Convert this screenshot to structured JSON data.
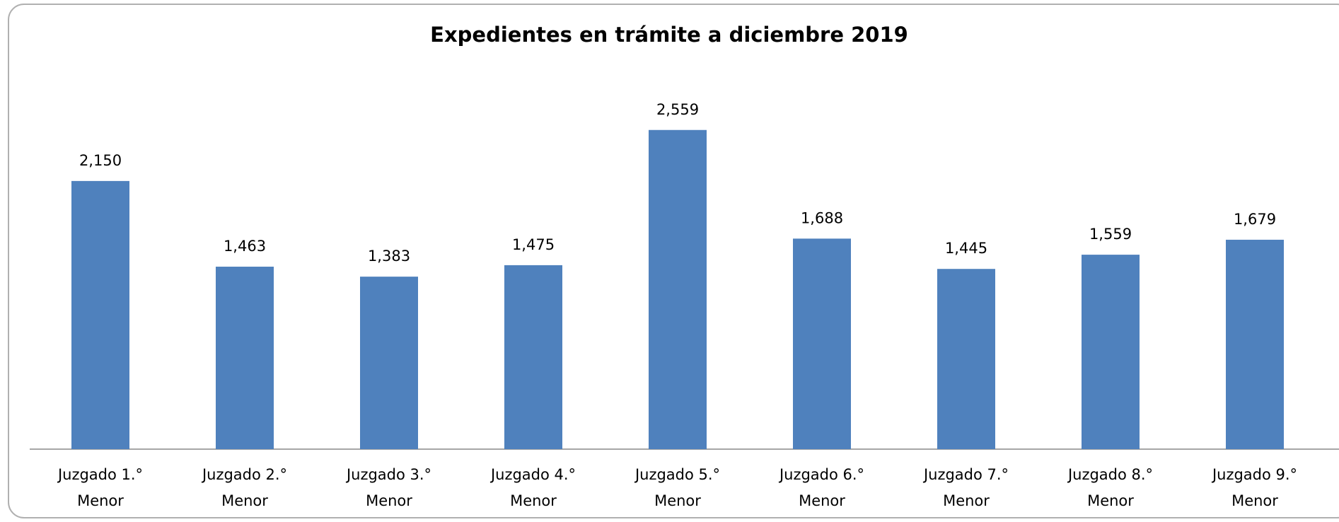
{
  "chart_data": {
    "type": "bar",
    "title": "Expedientes en trámite a diciembre 2019",
    "categories": [
      [
        "Juzgado 1.°",
        "Menor"
      ],
      [
        "Juzgado 2.°",
        "Menor"
      ],
      [
        "Juzgado 3.°",
        "Menor"
      ],
      [
        "Juzgado 4.°",
        "Menor"
      ],
      [
        "Juzgado 5.°",
        "Menor"
      ],
      [
        "Juzgado 6.°",
        "Menor"
      ],
      [
        "Juzgado 7.°",
        "Menor"
      ],
      [
        "Juzgado 8.°",
        "Menor"
      ],
      [
        "Juzgado 9.°",
        "Menor"
      ]
    ],
    "values": [
      2150,
      1463,
      1383,
      1475,
      2559,
      1688,
      1445,
      1559,
      1679
    ],
    "value_labels": [
      "2,150",
      "1,463",
      "1,383",
      "1,475",
      "2,559",
      "1,688",
      "1,445",
      "1,559",
      "1,679"
    ],
    "color": "#4f81bd",
    "ylim": [
      0,
      3000
    ]
  }
}
